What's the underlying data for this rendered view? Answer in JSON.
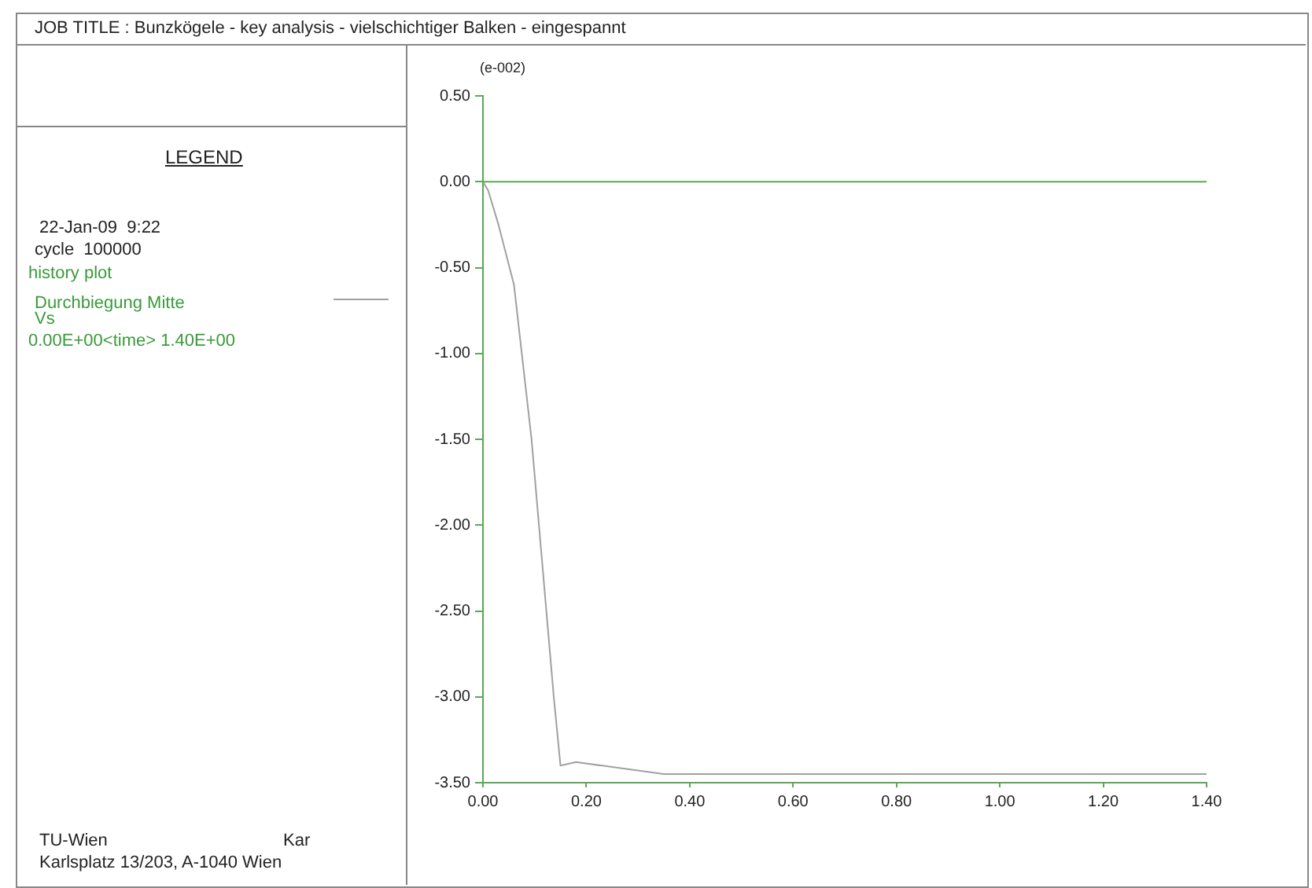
{
  "chart_data": {
    "type": "line",
    "title": "JOB TITLE :  Bunzkögele - key analysis - vielschichtiger Balken - eingespannt",
    "ylabel": "(e-002)",
    "x": [
      0,
      0.01,
      0.03,
      0.06,
      0.094,
      0.137,
      0.15,
      0.18,
      0.35,
      1.4
    ],
    "series": [
      {
        "name": "Durchbiegung Mitte",
        "color": "#a0a0a0",
        "values": [
          0,
          -0.05,
          -0.25,
          -0.6,
          -1.5,
          -3.0,
          -3.4,
          -3.38,
          -3.45,
          -3.45
        ]
      }
    ],
    "xlim": [
      0,
      1.4
    ],
    "xticks": [
      {
        "value": 0,
        "label": "0.00"
      },
      {
        "value": 0.2,
        "label": "0.20"
      },
      {
        "value": 0.4,
        "label": "0.40"
      },
      {
        "value": 0.6,
        "label": "0.60"
      },
      {
        "value": 0.8,
        "label": "0.80"
      },
      {
        "value": 1,
        "label": "1.00"
      },
      {
        "value": 1.2,
        "label": "1.20"
      },
      {
        "value": 1.4,
        "label": "1.40"
      }
    ],
    "ylim": [
      -3.5,
      0.5
    ],
    "yticks": [
      {
        "value": 0.5,
        "label": "0.50"
      },
      {
        "value": 0,
        "label": "0.00"
      },
      {
        "value": -0.5,
        "label": "-0.50"
      },
      {
        "value": -1,
        "label": "-1.00"
      },
      {
        "value": -1.5,
        "label": "-1.50"
      },
      {
        "value": -2,
        "label": "-2.00"
      },
      {
        "value": -2.5,
        "label": "-2.50"
      },
      {
        "value": -3,
        "label": "-3.00"
      },
      {
        "value": -3.5,
        "label": "-3.50"
      }
    ],
    "ref_lines": [
      {
        "axis": "y",
        "value": 0,
        "color": "#5aa85a"
      }
    ],
    "grid": false,
    "legend": "left",
    "marker": "none",
    "line_style": "solid",
    "annotations": [
      "LEGEND",
      "22-Jan-09  9:22",
      "cycle  100000",
      "history plot",
      "Vs",
      "0.00E+00<time> 1.40E+00",
      "TU-Wien",
      "Kar",
      "Karlsplatz 13/203, A-1040 Wien"
    ]
  }
}
